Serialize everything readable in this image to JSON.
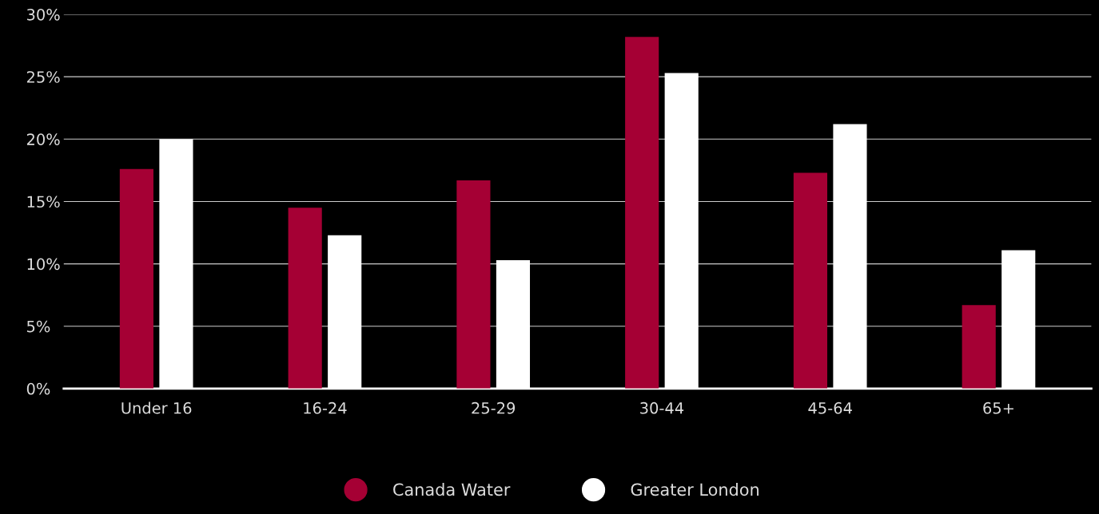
{
  "chart_data": {
    "type": "bar",
    "categories": [
      "Under 16",
      "16-24",
      "25-29",
      "30-44",
      "45-64",
      "65+"
    ],
    "series": [
      {
        "name": "Canada Water",
        "color": "#a50034",
        "values": [
          17.6,
          14.5,
          16.7,
          28.2,
          17.3,
          6.7
        ]
      },
      {
        "name": "Greater London",
        "color": "#ffffff",
        "values": [
          20.0,
          12.3,
          10.3,
          25.3,
          21.2,
          11.1
        ]
      }
    ],
    "ylim": [
      0,
      30
    ],
    "yticks": [
      {
        "value": 0,
        "label": "0%"
      },
      {
        "value": 5,
        "label": "5%"
      },
      {
        "value": 10,
        "label": "10%"
      },
      {
        "value": 15,
        "label": "15%"
      },
      {
        "value": 20,
        "label": "20%"
      },
      {
        "value": 25,
        "label": "25%"
      },
      {
        "value": 30,
        "label": "30%"
      }
    ],
    "grid": "y",
    "legend": "bottom"
  }
}
